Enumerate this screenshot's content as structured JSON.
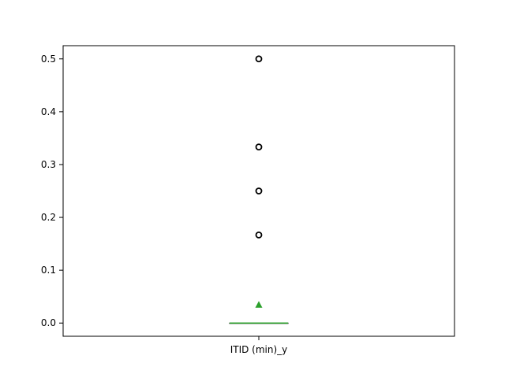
{
  "chart_data": {
    "type": "box",
    "categories": [
      "ITID (min)_y"
    ],
    "title": "",
    "xlabel": "",
    "ylabel": "",
    "ylim": [
      -0.025,
      0.525
    ],
    "yticks": [
      0.0,
      0.1,
      0.2,
      0.3,
      0.4,
      0.5
    ],
    "ytick_labels": [
      "0.0",
      "0.1",
      "0.2",
      "0.3",
      "0.4",
      "0.5"
    ],
    "grid": false,
    "boxes": [
      {
        "category": "ITID (min)_y",
        "whisker_low": 0.0,
        "q1": 0.0,
        "median": 0.0,
        "q3": 0.0,
        "whisker_high": 0.0,
        "mean": 0.035,
        "outliers": [
          0.1667,
          0.25,
          0.3333,
          0.5
        ]
      }
    ],
    "colors": {
      "box": "#000000",
      "median": "#2ca02c",
      "mean_marker": "#2ca02c",
      "outlier": "#000000"
    }
  }
}
